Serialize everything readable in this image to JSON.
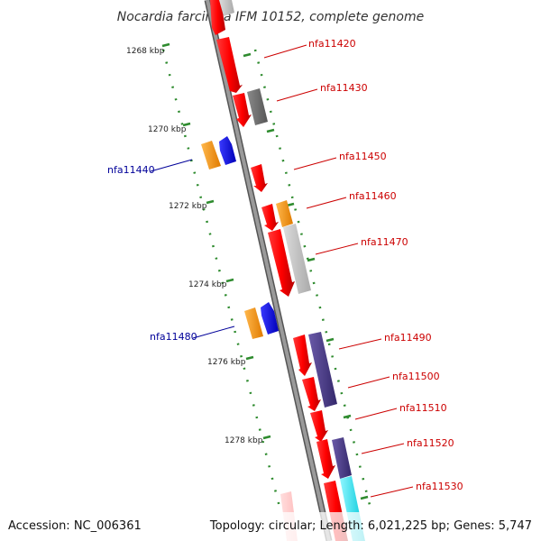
{
  "title": "Nocardia farcinica IFM 10152, complete genome",
  "footer": {
    "accession": "Accession: NC_006361",
    "summary": "Topology: circular; Length: 6,021,225 bp; Genes: 5,747"
  },
  "kbp_labels": [
    "1268 kbp",
    "1270 kbp",
    "1272 kbp",
    "1274 kbp",
    "1276 kbp",
    "1278 kbp"
  ],
  "gene_labels": {
    "forward": [
      "nfa11420",
      "nfa11430",
      "nfa11450",
      "nfa11460",
      "nfa11470",
      "nfa11490",
      "nfa11500",
      "nfa11510",
      "nfa11520",
      "nfa11530"
    ],
    "reverse": [
      "nfa11440",
      "nfa11480"
    ]
  },
  "colors": {
    "forward_label": "#cc0000",
    "reverse_label": "#000099",
    "tick": "#2e8b2e",
    "backbone": "#888888",
    "red_gene": "#ff0000",
    "gray_gene": "#707070",
    "light_gray_gene": "#c8c8c8",
    "orange_gene": "#ff9900",
    "blue_gene": "#0000ff",
    "purple_gene": "#4b3c8c",
    "cyan_gene": "#00e5ee"
  }
}
